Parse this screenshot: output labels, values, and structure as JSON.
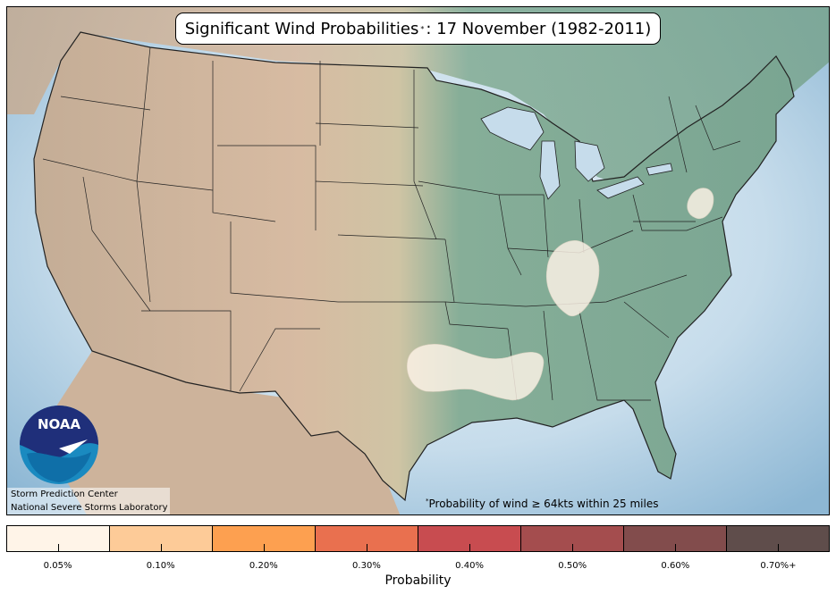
{
  "title": {
    "main": "Significant Wind Probabilities",
    "marker": "*",
    "date": ": 17 November (1982-2011)"
  },
  "footnote": {
    "marker": "*",
    "text": "Probability of wind ≥ 64kts within 25 miles"
  },
  "credits": {
    "line1": "Storm Prediction Center",
    "line2": "National Severe Storms Laboratory"
  },
  "logo": {
    "text": "NOAA"
  },
  "colorbar": {
    "label": "Probability",
    "ticks": [
      "0.05%",
      "0.10%",
      "0.20%",
      "0.30%",
      "0.40%",
      "0.50%",
      "0.60%",
      "0.70%+"
    ],
    "colors": [
      "#fff4e8",
      "#fdcb98",
      "#fda050",
      "#e9704f",
      "#c84c50",
      "#a44d4e",
      "#824c4c",
      "#5f4d4b"
    ]
  },
  "probability_areas": [
    {
      "name": "mid-atlantic",
      "level": "0.05%"
    },
    {
      "name": "ohio-valley",
      "level": "0.05%"
    },
    {
      "name": "south-central",
      "level": "0.05%"
    }
  ]
}
